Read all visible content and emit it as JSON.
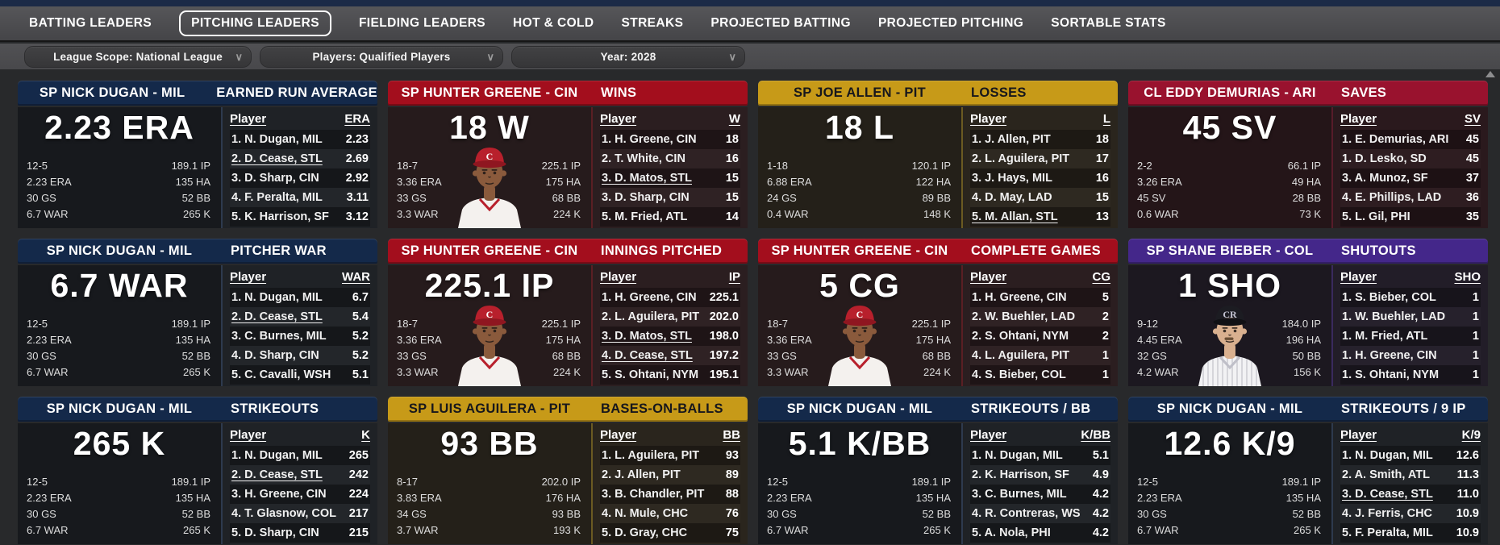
{
  "nav": {
    "items": [
      {
        "label": "BATTING LEADERS",
        "selected": false
      },
      {
        "label": "PITCHING LEADERS",
        "selected": true
      },
      {
        "label": "FIELDING LEADERS",
        "selected": false
      },
      {
        "label": "HOT & COLD",
        "selected": false
      },
      {
        "label": "STREAKS",
        "selected": false
      },
      {
        "label": "PROJECTED BATTING",
        "selected": false
      },
      {
        "label": "PROJECTED PITCHING",
        "selected": false
      },
      {
        "label": "SORTABLE STATS",
        "selected": false
      }
    ]
  },
  "filters": [
    {
      "label": "League Scope: National League"
    },
    {
      "label": "Players: Qualified Players"
    },
    {
      "label": "Year: 2028"
    }
  ],
  "icons": {
    "dropdown_chevron": "∨"
  },
  "themes": {
    "mil": {
      "header": "#14294a",
      "header_text": "#ffffff",
      "body": "#17191d",
      "panel": "#1f2226",
      "divider": "#2e3a4e"
    },
    "cin": {
      "header": "#a30e1d",
      "header_text": "#ffffff",
      "body": "#261b1c",
      "panel": "#2b1e20",
      "divider": "#5a1f24"
    },
    "pit": {
      "header": "#c79a18",
      "header_text": "#17171c",
      "body": "#242019",
      "panel": "#2a251d",
      "divider": "#6b5a22"
    },
    "ari": {
      "header": "#99122e",
      "header_text": "#ffffff",
      "body": "#241518",
      "panel": "#2a191d",
      "divider": "#571c2a"
    },
    "col": {
      "header": "#44278a",
      "header_text": "#ffffff",
      "body": "#1c1820",
      "panel": "#221d28",
      "divider": "#3a2a5e"
    }
  },
  "cards": [
    {
      "theme": "mil",
      "photo": "none",
      "player_header": "SP NICK DUGAN - MIL",
      "category_header": "EARNED RUN AVERAGE",
      "big_stat": "2.23 ERA",
      "stats_left": [
        "12-5",
        "2.23 ERA",
        "30 GS",
        "6.7 WAR"
      ],
      "stats_right": [
        "189.1 IP",
        "135 HA",
        "52 BB",
        "265 K"
      ],
      "col_player": "Player",
      "col_stat": "ERA",
      "rows": [
        {
          "name": "1. N. Dugan, MIL",
          "value": "2.23",
          "underline": false
        },
        {
          "name": "2. D. Cease, STL",
          "value": "2.69",
          "underline": true
        },
        {
          "name": "3. D. Sharp, CIN",
          "value": "2.92",
          "underline": false
        },
        {
          "name": "4. F. Peralta, MIL",
          "value": "3.11",
          "underline": false
        },
        {
          "name": "5. K. Harrison, SF",
          "value": "3.12",
          "underline": false
        }
      ]
    },
    {
      "theme": "cin",
      "photo": "reds-player",
      "player_header": "SP HUNTER GREENE - CIN",
      "category_header": "WINS",
      "big_stat": "18 W",
      "stats_left": [
        "18-7",
        "3.36 ERA",
        "33 GS",
        "3.3 WAR"
      ],
      "stats_right": [
        "225.1 IP",
        "175 HA",
        "68 BB",
        "224 K"
      ],
      "col_player": "Player",
      "col_stat": "W",
      "rows": [
        {
          "name": "1. H. Greene, CIN",
          "value": "18",
          "underline": false
        },
        {
          "name": "2. T. White, CIN",
          "value": "16",
          "underline": false
        },
        {
          "name": "3. D. Matos, STL",
          "value": "15",
          "underline": true
        },
        {
          "name": "3. D. Sharp, CIN",
          "value": "15",
          "underline": false
        },
        {
          "name": "5. M. Fried, ATL",
          "value": "14",
          "underline": false
        }
      ]
    },
    {
      "theme": "pit",
      "photo": "none",
      "player_header": "SP JOE ALLEN - PIT",
      "category_header": "LOSSES",
      "big_stat": "18 L",
      "stats_left": [
        "1-18",
        "6.88 ERA",
        "24 GS",
        "0.4 WAR"
      ],
      "stats_right": [
        "120.1 IP",
        "122 HA",
        "89 BB",
        "148 K"
      ],
      "col_player": "Player",
      "col_stat": "L",
      "rows": [
        {
          "name": "1. J. Allen, PIT",
          "value": "18",
          "underline": false
        },
        {
          "name": "2. L. Aguilera, PIT",
          "value": "17",
          "underline": false
        },
        {
          "name": "3. J. Hays, MIL",
          "value": "16",
          "underline": false
        },
        {
          "name": "4. D. May, LAD",
          "value": "15",
          "underline": false
        },
        {
          "name": "5. M. Allan, STL",
          "value": "13",
          "underline": true
        }
      ]
    },
    {
      "theme": "ari",
      "photo": "none",
      "player_header": "CL EDDY DEMURIAS - ARI",
      "category_header": "SAVES",
      "big_stat": "45 SV",
      "stats_left": [
        "2-2",
        "3.26 ERA",
        "45 SV",
        "0.6 WAR"
      ],
      "stats_right": [
        "66.1 IP",
        "49 HA",
        "28 BB",
        "73 K"
      ],
      "col_player": "Player",
      "col_stat": "SV",
      "rows": [
        {
          "name": "1. E. Demurias, ARI",
          "value": "45",
          "underline": false
        },
        {
          "name": "1. D. Lesko, SD",
          "value": "45",
          "underline": false
        },
        {
          "name": "3. A. Munoz, SF",
          "value": "37",
          "underline": false
        },
        {
          "name": "4. E. Phillips, LAD",
          "value": "36",
          "underline": false
        },
        {
          "name": "5. L. Gil, PHI",
          "value": "35",
          "underline": false
        }
      ]
    },
    {
      "theme": "mil",
      "photo": "none",
      "player_header": "SP NICK DUGAN - MIL",
      "category_header": "PITCHER WAR",
      "big_stat": "6.7 WAR",
      "stats_left": [
        "12-5",
        "2.23 ERA",
        "30 GS",
        "6.7 WAR"
      ],
      "stats_right": [
        "189.1 IP",
        "135 HA",
        "52 BB",
        "265 K"
      ],
      "col_player": "Player",
      "col_stat": "WAR",
      "rows": [
        {
          "name": "1. N. Dugan, MIL",
          "value": "6.7",
          "underline": false
        },
        {
          "name": "2. D. Cease, STL",
          "value": "5.4",
          "underline": true
        },
        {
          "name": "3. C. Burnes, MIL",
          "value": "5.2",
          "underline": false
        },
        {
          "name": "4. D. Sharp, CIN",
          "value": "5.2",
          "underline": false
        },
        {
          "name": "5. C. Cavalli, WSH",
          "value": "5.1",
          "underline": false
        }
      ]
    },
    {
      "theme": "cin",
      "photo": "reds-player",
      "player_header": "SP HUNTER GREENE - CIN",
      "category_header": "INNINGS PITCHED",
      "big_stat": "225.1 IP",
      "stats_left": [
        "18-7",
        "3.36 ERA",
        "33 GS",
        "3.3 WAR"
      ],
      "stats_right": [
        "225.1 IP",
        "175 HA",
        "68 BB",
        "224 K"
      ],
      "col_player": "Player",
      "col_stat": "IP",
      "rows": [
        {
          "name": "1. H. Greene, CIN",
          "value": "225.1",
          "underline": false
        },
        {
          "name": "2. L. Aguilera, PIT",
          "value": "202.0",
          "underline": false
        },
        {
          "name": "3. D. Matos, STL",
          "value": "198.0",
          "underline": true
        },
        {
          "name": "4. D. Cease, STL",
          "value": "197.2",
          "underline": true
        },
        {
          "name": "5. S. Ohtani, NYM",
          "value": "195.1",
          "underline": false
        }
      ]
    },
    {
      "theme": "cin",
      "photo": "reds-player",
      "player_header": "SP HUNTER GREENE - CIN",
      "category_header": "COMPLETE GAMES",
      "big_stat": "5 CG",
      "stats_left": [
        "18-7",
        "3.36 ERA",
        "33 GS",
        "3.3 WAR"
      ],
      "stats_right": [
        "225.1 IP",
        "175 HA",
        "68 BB",
        "224 K"
      ],
      "col_player": "Player",
      "col_stat": "CG",
      "rows": [
        {
          "name": "1. H. Greene, CIN",
          "value": "5",
          "underline": false
        },
        {
          "name": "2. W. Buehler, LAD",
          "value": "2",
          "underline": false
        },
        {
          "name": "2. S. Ohtani, NYM",
          "value": "2",
          "underline": false
        },
        {
          "name": "4. L. Aguilera, PIT",
          "value": "1",
          "underline": false
        },
        {
          "name": "4. S. Bieber, COL",
          "value": "1",
          "underline": false
        }
      ]
    },
    {
      "theme": "col",
      "photo": "rockies-player",
      "player_header": "SP SHANE BIEBER - COL",
      "category_header": "SHUTOUTS",
      "big_stat": "1 SHO",
      "stats_left": [
        "9-12",
        "4.45 ERA",
        "32 GS",
        "4.2 WAR"
      ],
      "stats_right": [
        "184.0 IP",
        "196 HA",
        "50 BB",
        "156 K"
      ],
      "col_player": "Player",
      "col_stat": "SHO",
      "rows": [
        {
          "name": "1. S. Bieber, COL",
          "value": "1",
          "underline": false
        },
        {
          "name": "1. W. Buehler, LAD",
          "value": "1",
          "underline": false
        },
        {
          "name": "1. M. Fried, ATL",
          "value": "1",
          "underline": false
        },
        {
          "name": "1. H. Greene, CIN",
          "value": "1",
          "underline": false
        },
        {
          "name": "1. S. Ohtani, NYM",
          "value": "1",
          "underline": false
        }
      ]
    },
    {
      "theme": "mil",
      "photo": "none",
      "player_header": "SP NICK DUGAN - MIL",
      "category_header": "STRIKEOUTS",
      "big_stat": "265 K",
      "stats_left": [
        "12-5",
        "2.23 ERA",
        "30 GS",
        "6.7 WAR"
      ],
      "stats_right": [
        "189.1 IP",
        "135 HA",
        "52 BB",
        "265 K"
      ],
      "col_player": "Player",
      "col_stat": "K",
      "rows": [
        {
          "name": "1. N. Dugan, MIL",
          "value": "265",
          "underline": false
        },
        {
          "name": "2. D. Cease, STL",
          "value": "242",
          "underline": true
        },
        {
          "name": "3. H. Greene, CIN",
          "value": "224",
          "underline": false
        },
        {
          "name": "4. T. Glasnow, COL",
          "value": "217",
          "underline": false
        },
        {
          "name": "5. D. Sharp, CIN",
          "value": "215",
          "underline": false
        }
      ]
    },
    {
      "theme": "pit",
      "photo": "none",
      "player_header": "SP LUIS AGUILERA - PIT",
      "category_header": "BASES-ON-BALLS",
      "big_stat": "93 BB",
      "stats_left": [
        "8-17",
        "3.83 ERA",
        "34 GS",
        "3.7 WAR"
      ],
      "stats_right": [
        "202.0 IP",
        "176 HA",
        "93 BB",
        "193 K"
      ],
      "col_player": "Player",
      "col_stat": "BB",
      "rows": [
        {
          "name": "1. L. Aguilera, PIT",
          "value": "93",
          "underline": false
        },
        {
          "name": "2. J. Allen, PIT",
          "value": "89",
          "underline": false
        },
        {
          "name": "3. B. Chandler, PIT",
          "value": "88",
          "underline": false
        },
        {
          "name": "4. N. Mule, CHC",
          "value": "76",
          "underline": false
        },
        {
          "name": "5. D. Gray, CHC",
          "value": "75",
          "underline": false
        }
      ]
    },
    {
      "theme": "mil",
      "photo": "none",
      "player_header": "SP NICK DUGAN - MIL",
      "category_header": "STRIKEOUTS / BB",
      "big_stat": "5.1 K/BB",
      "stats_left": [
        "12-5",
        "2.23 ERA",
        "30 GS",
        "6.7 WAR"
      ],
      "stats_right": [
        "189.1 IP",
        "135 HA",
        "52 BB",
        "265 K"
      ],
      "col_player": "Player",
      "col_stat": "K/BB",
      "rows": [
        {
          "name": "1. N. Dugan, MIL",
          "value": "5.1",
          "underline": false
        },
        {
          "name": "2. K. Harrison, SF",
          "value": "4.9",
          "underline": false
        },
        {
          "name": "3. C. Burnes, MIL",
          "value": "4.2",
          "underline": false
        },
        {
          "name": "4. R. Contreras, WS",
          "value": "4.2",
          "underline": false
        },
        {
          "name": "5. A. Nola, PHI",
          "value": "4.2",
          "underline": false
        }
      ]
    },
    {
      "theme": "mil",
      "photo": "none",
      "player_header": "SP NICK DUGAN - MIL",
      "category_header": "STRIKEOUTS / 9 IP",
      "big_stat": "12.6 K/9",
      "stats_left": [
        "12-5",
        "2.23 ERA",
        "30 GS",
        "6.7 WAR"
      ],
      "stats_right": [
        "189.1 IP",
        "135 HA",
        "52 BB",
        "265 K"
      ],
      "col_player": "Player",
      "col_stat": "K/9",
      "rows": [
        {
          "name": "1. N. Dugan, MIL",
          "value": "12.6",
          "underline": false
        },
        {
          "name": "2. A. Smith, ATL",
          "value": "11.3",
          "underline": false
        },
        {
          "name": "3. D. Cease, STL",
          "value": "11.0",
          "underline": true
        },
        {
          "name": "4. J. Ferris, CHC",
          "value": "10.9",
          "underline": false
        },
        {
          "name": "5. F. Peralta, MIL",
          "value": "10.9",
          "underline": false
        }
      ]
    }
  ]
}
